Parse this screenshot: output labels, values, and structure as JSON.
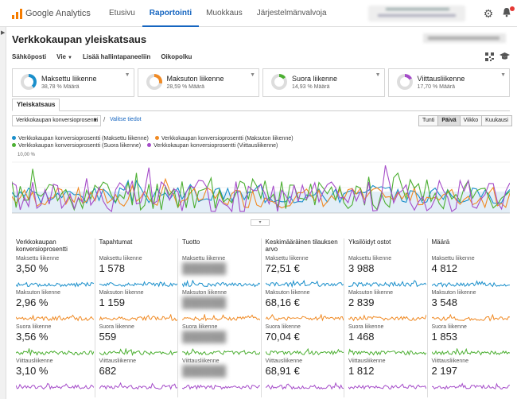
{
  "topnav": {
    "brand": "Google Analytics",
    "tabs": [
      {
        "label": "Etusivu",
        "active": false
      },
      {
        "label": "Raportointi",
        "active": true
      },
      {
        "label": "Muokkaus",
        "active": false
      },
      {
        "label": "Järjestelmänvalvoja",
        "active": false
      }
    ]
  },
  "header": {
    "title": "Verkkokaupan yleiskatsaus"
  },
  "toolbar": {
    "email": "Sähköposti",
    "export": "Vie",
    "add_dashboard": "Lisää hallintapaneeliin",
    "shortcut": "Oikopolku"
  },
  "segments": [
    {
      "name": "Maksettu liikenne",
      "sub": "38,78 % Määrä",
      "color": "#1a8fcb"
    },
    {
      "name": "Maksuton liikenne",
      "sub": "28,59 % Määrä",
      "color": "#f08a24"
    },
    {
      "name": "Suora liikenne",
      "sub": "14,93 % Määrä",
      "color": "#4caf32"
    },
    {
      "name": "Viittausliikenne",
      "sub": "17,70 % Määrä",
      "color": "#a54cc9"
    }
  ],
  "tab": "Yleiskatsaus",
  "controls": {
    "metric": "Verkkokaupan konversioprosentti",
    "slash": "/",
    "select_metric": "Valitse tiedot",
    "ranges": [
      {
        "label": "Tunti",
        "active": false
      },
      {
        "label": "Päivä",
        "active": true
      },
      {
        "label": "Viikko",
        "active": false
      },
      {
        "label": "Kuukausi",
        "active": false
      }
    ]
  },
  "legend": [
    {
      "label": "Verkkokaupan konversioprosentti (Maksettu liikenne)",
      "color": "#1a8fcb"
    },
    {
      "label": "Verkkokaupan konversioprosentti (Maksuton liikenne)",
      "color": "#f08a24"
    },
    {
      "label": "Verkkokaupan konversioprosentti (Suora liikenne)",
      "color": "#4caf32"
    },
    {
      "label": "Verkkokaupan konversioprosentti (Viittausliikenne)",
      "color": "#a54cc9"
    }
  ],
  "chart_data": {
    "type": "line",
    "ymax_label": "10,00 %",
    "ylim": [
      0,
      10
    ],
    "series": [
      {
        "name": "Verkkokaupan konversioprosentti (Maksettu liikenne)",
        "color": "#1a8fcb",
        "seed": 3,
        "mean": 3.5,
        "amp": 1.6
      },
      {
        "name": "Verkkokaupan konversioprosentti (Maksuton liikenne)",
        "color": "#f08a24",
        "seed": 7,
        "mean": 3.0,
        "amp": 2.0
      },
      {
        "name": "Verkkokaupan konversioprosentti (Suora liikenne)",
        "color": "#4caf32",
        "seed": 11,
        "mean": 3.6,
        "amp": 3.2
      },
      {
        "name": "Verkkokaupan konversioprosentti (Viittausliikenne)",
        "color": "#a54cc9",
        "seed": 17,
        "mean": 3.1,
        "amp": 3.4
      }
    ],
    "points": 121
  },
  "cards": [
    {
      "title": "Verkkokaupan konversioprosentti",
      "stats": [
        {
          "label": "Maksettu liikenne",
          "value": "3,50 %",
          "color": "#1a8fcb"
        },
        {
          "label": "Maksuton liikenne",
          "value": "2,96 %",
          "color": "#f08a24"
        },
        {
          "label": "Suora liikenne",
          "value": "3,56 %",
          "color": "#4caf32"
        },
        {
          "label": "Viittausliikenne",
          "value": "3,10 %",
          "color": "#a54cc9"
        }
      ]
    },
    {
      "title": "Tapahtumat",
      "stats": [
        {
          "label": "Maksettu liikenne",
          "value": "1 578",
          "color": "#1a8fcb"
        },
        {
          "label": "Maksuton liikenne",
          "value": "1 159",
          "color": "#f08a24"
        },
        {
          "label": "Suora liikenne",
          "value": "559",
          "color": "#4caf32"
        },
        {
          "label": "Viittausliikenne",
          "value": "682",
          "color": "#a54cc9"
        }
      ]
    },
    {
      "title": "Tuotto",
      "stats": [
        {
          "label": "Maksettu liikenne",
          "value": "",
          "color": "#1a8fcb"
        },
        {
          "label": "Maksuton liikenne",
          "value": "",
          "color": "#f08a24"
        },
        {
          "label": "Suora liikenne",
          "value": "",
          "color": "#4caf32"
        },
        {
          "label": "Viittausliikenne",
          "value": "",
          "color": "#a54cc9"
        }
      ]
    },
    {
      "title": "Keskimääräinen tilauksen arvo",
      "stats": [
        {
          "label": "Maksettu liikenne",
          "value": "72,51 €",
          "color": "#1a8fcb"
        },
        {
          "label": "Maksuton liikenne",
          "value": "68,16 €",
          "color": "#f08a24"
        },
        {
          "label": "Suora liikenne",
          "value": "70,04 €",
          "color": "#4caf32"
        },
        {
          "label": "Viittausliikenne",
          "value": "68,91 €",
          "color": "#a54cc9"
        }
      ]
    },
    {
      "title": "Yksilöidyt ostot",
      "stats": [
        {
          "label": "Maksettu liikenne",
          "value": "3 988",
          "color": "#1a8fcb"
        },
        {
          "label": "Maksuton liikenne",
          "value": "2 839",
          "color": "#f08a24"
        },
        {
          "label": "Suora liikenne",
          "value": "1 468",
          "color": "#4caf32"
        },
        {
          "label": "Viittausliikenne",
          "value": "1 812",
          "color": "#a54cc9"
        }
      ]
    },
    {
      "title": "Määrä",
      "stats": [
        {
          "label": "Maksettu liikenne",
          "value": "4 812",
          "color": "#1a8fcb"
        },
        {
          "label": "Maksuton liikenne",
          "value": "3 548",
          "color": "#f08a24"
        },
        {
          "label": "Suora liikenne",
          "value": "1 853",
          "color": "#4caf32"
        },
        {
          "label": "Viittausliikenne",
          "value": "2 197",
          "color": "#a54cc9"
        }
      ]
    }
  ]
}
